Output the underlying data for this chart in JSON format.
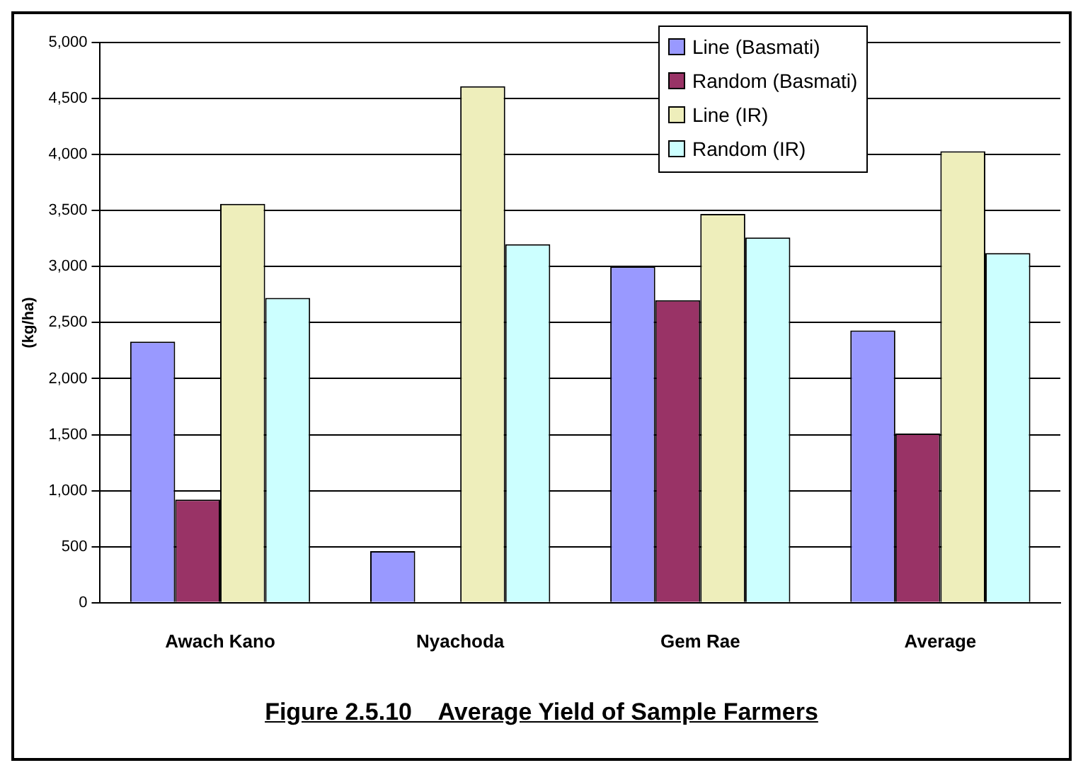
{
  "chart_data": {
    "type": "bar",
    "title": "Figure 2.5.10    Average Yield of Sample Farmers",
    "ylabel": "(kg/ha)",
    "categories": [
      "Awach Kano",
      "Nyachoda",
      "Gem Rae",
      "Average"
    ],
    "series": [
      {
        "name": "Line (Basmati)",
        "color": "#9999ff",
        "values": [
          2330,
          460,
          3000,
          2430
        ]
      },
      {
        "name": "Random (Basmati)",
        "color": "#993366",
        "values": [
          920,
          null,
          2700,
          1510
        ]
      },
      {
        "name": "Line (IR)",
        "color": "#eeeebb",
        "values": [
          3560,
          4610,
          3470,
          4030
        ]
      },
      {
        "name": "Random (IR)",
        "color": "#ccffff",
        "values": [
          2720,
          3200,
          3260,
          3120
        ]
      }
    ],
    "ylim": [
      0,
      5000
    ],
    "yticks": [
      0,
      500,
      {
        "value": 1000,
        "label": "1,000"
      },
      {
        "value": 1500,
        "label": "1,500"
      },
      {
        "value": 2000,
        "label": "2,000"
      },
      {
        "value": 2500,
        "label": "2,500"
      },
      {
        "value": 3000,
        "label": "3,000"
      },
      {
        "value": 3500,
        "label": "3,500"
      },
      {
        "value": 4000,
        "label": "4,000"
      },
      {
        "value": 4500,
        "label": "4,500"
      },
      {
        "value": 5000,
        "label": "5,000"
      }
    ],
    "grid": "y",
    "legend": "top"
  }
}
